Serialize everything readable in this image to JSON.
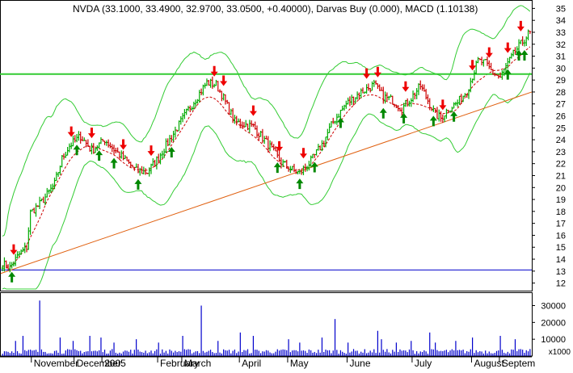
{
  "chart_data": {
    "type": "line",
    "title": "NVDA (33.1000, 33.4900, 32.9700, 33.0500, +0.40000), Darvas Buy (0.000), MACD (1.10138)",
    "price_axis": {
      "ylim": [
        11.5,
        35.5
      ],
      "ticks": [
        12,
        13,
        14,
        15,
        16,
        17,
        18,
        19,
        20,
        21,
        22,
        23,
        24,
        25,
        26,
        27,
        28,
        29,
        30,
        31,
        32,
        33,
        34,
        35
      ]
    },
    "volume_axis": {
      "ylim": [
        0,
        36000
      ],
      "ticks": [
        10000,
        20000,
        30000
      ],
      "tick_labels": [
        "10000",
        "20000",
        "30000"
      ],
      "unit_label": "x1000"
    },
    "x_axis": {
      "tick_labels": [
        "November",
        "December",
        "2005",
        "February",
        "March",
        "April",
        "May",
        "June",
        "July",
        "August",
        "Septem"
      ],
      "tick_bars": [
        16,
        39,
        54,
        84,
        97,
        128,
        154,
        186,
        221,
        253,
        268
      ]
    },
    "n_bars": 285,
    "price_waypoints": [
      [
        0,
        13.6
      ],
      [
        4,
        13.3
      ],
      [
        9,
        14.4
      ],
      [
        13,
        15.0
      ],
      [
        15,
        17.9
      ],
      [
        20,
        18.6
      ],
      [
        25,
        19.6
      ],
      [
        28,
        20.3
      ],
      [
        32,
        22.4
      ],
      [
        36,
        23.5
      ],
      [
        42,
        24.3
      ],
      [
        48,
        23.1
      ],
      [
        55,
        24.0
      ],
      [
        60,
        23.2
      ],
      [
        66,
        22.3
      ],
      [
        72,
        21.4
      ],
      [
        78,
        21.3
      ],
      [
        83,
        22.3
      ],
      [
        92,
        24.5
      ],
      [
        100,
        26.5
      ],
      [
        110,
        28.8
      ],
      [
        115,
        28.6
      ],
      [
        118,
        27.8
      ],
      [
        125,
        25.5
      ],
      [
        135,
        25.1
      ],
      [
        143,
        23.6
      ],
      [
        150,
        22.1
      ],
      [
        157,
        21.4
      ],
      [
        160,
        21.2
      ],
      [
        166,
        22.2
      ],
      [
        172,
        23.6
      ],
      [
        178,
        25.5
      ],
      [
        185,
        27.0
      ],
      [
        192,
        27.9
      ],
      [
        200,
        28.6
      ],
      [
        205,
        27.6
      ],
      [
        210,
        27.3
      ],
      [
        215,
        26.6
      ],
      [
        220,
        27.5
      ],
      [
        225,
        28.5
      ],
      [
        230,
        27.0
      ],
      [
        233,
        26.1
      ],
      [
        236,
        25.8
      ],
      [
        240,
        26.6
      ],
      [
        245,
        27.1
      ],
      [
        250,
        28.1
      ],
      [
        256,
        30.6
      ],
      [
        260,
        30.4
      ],
      [
        264,
        29.6
      ],
      [
        268,
        29.2
      ],
      [
        271,
        30.1
      ],
      [
        276,
        31.4
      ],
      [
        280,
        32.2
      ],
      [
        284,
        33.05
      ]
    ],
    "volume_base": 2800,
    "volume_spikes": [
      [
        7,
        9000
      ],
      [
        11,
        12000
      ],
      [
        20,
        33000
      ],
      [
        31,
        11000
      ],
      [
        38,
        9000
      ],
      [
        47,
        12000
      ],
      [
        53,
        11000
      ],
      [
        60,
        8000
      ],
      [
        72,
        10000
      ],
      [
        84,
        8000
      ],
      [
        97,
        12000
      ],
      [
        107,
        30000
      ],
      [
        116,
        9000
      ],
      [
        128,
        14000
      ],
      [
        135,
        12000
      ],
      [
        154,
        10000
      ],
      [
        160,
        8000
      ],
      [
        172,
        11000
      ],
      [
        179,
        22000
      ],
      [
        186,
        8000
      ],
      [
        202,
        15000
      ],
      [
        204,
        10000
      ],
      [
        212,
        8000
      ],
      [
        220,
        9000
      ],
      [
        230,
        14000
      ],
      [
        233,
        8000
      ],
      [
        244,
        9000
      ],
      [
        253,
        11000
      ],
      [
        268,
        12000
      ],
      [
        276,
        10000
      ]
    ],
    "horizontal_lines": [
      {
        "value": 29.5,
        "color": "#33cc33"
      },
      {
        "value": 13.1,
        "color": "#0000cc"
      }
    ],
    "trendline": {
      "from": [
        0,
        12.8
      ],
      "to": [
        284,
        28.0
      ],
      "color": "#e06010"
    },
    "signals": {
      "sell_bars": [
        6,
        37,
        48,
        65,
        80,
        114,
        119,
        135,
        149,
        162,
        196,
        202,
        217,
        237,
        253,
        262,
        272,
        279
      ],
      "buy_bars": [
        5,
        40,
        52,
        60,
        73,
        91,
        148,
        160,
        168,
        182,
        205,
        216,
        232,
        243,
        272,
        278,
        281
      ]
    },
    "colors": {
      "up_bar": "#00aa00",
      "down_bar": "#cc0000",
      "band": "#33cc33",
      "signal_line": "#cc0000",
      "volume": "#0000cc",
      "buy_arrow": "#008800",
      "sell_arrow": "#ee0000",
      "axis": "#000000"
    }
  }
}
